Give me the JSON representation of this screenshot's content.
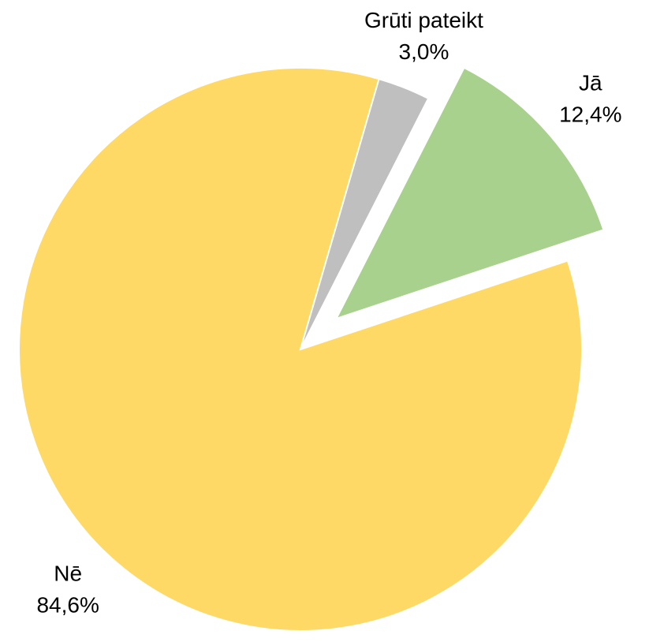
{
  "chart_data": {
    "type": "pie",
    "categories": [
      "Jā",
      "Nē",
      "Grūti pateikt"
    ],
    "values": [
      12.4,
      84.6,
      3.0
    ],
    "value_labels": [
      "12,4%",
      "84,6%",
      "3,0%"
    ],
    "colors": [
      "#a9d18e",
      "#ffd966",
      "#bfbfbf"
    ],
    "exploded": [
      true,
      false,
      false
    ]
  }
}
